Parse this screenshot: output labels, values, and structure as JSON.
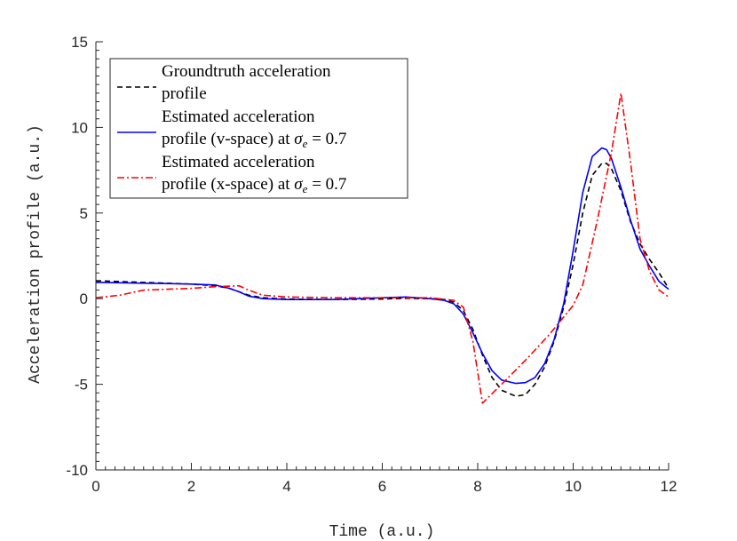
{
  "chart_data": {
    "type": "line",
    "xlabel": "Time (a.u.)",
    "ylabel": "Acceleration profile (a.u.)",
    "xlim": [
      0,
      12
    ],
    "ylim": [
      -10,
      15
    ],
    "xticks": [
      0,
      2,
      4,
      6,
      8,
      10,
      12
    ],
    "yticks": [
      -10,
      -5,
      0,
      5,
      10,
      15
    ],
    "xtick_labels": [
      "0",
      "2",
      "4",
      "6",
      "8",
      "10",
      "12"
    ],
    "ytick_labels": [
      "-10",
      "-5",
      "0",
      "5",
      "10",
      "15"
    ],
    "grid": false,
    "legend_position": "top-left",
    "series": [
      {
        "name": "Groundtruth acceleration profile",
        "legend_lines": [
          "Groundtruth acceleration",
          "profile"
        ],
        "color": "#000000",
        "style": "dashed",
        "points": [
          [
            0,
            1.05
          ],
          [
            0.5,
            1.0
          ],
          [
            1,
            0.95
          ],
          [
            1.5,
            0.9
          ],
          [
            2,
            0.85
          ],
          [
            2.5,
            0.75
          ],
          [
            2.8,
            0.6
          ],
          [
            3,
            0.4
          ],
          [
            3.2,
            0.2
          ],
          [
            3.5,
            0.05
          ],
          [
            4,
            -0.02
          ],
          [
            5,
            -0.05
          ],
          [
            6,
            -0.02
          ],
          [
            6.5,
            0.02
          ],
          [
            7,
            0.0
          ],
          [
            7.3,
            -0.05
          ],
          [
            7.5,
            -0.2
          ],
          [
            7.7,
            -0.7
          ],
          [
            7.9,
            -1.8
          ],
          [
            8.1,
            -3.3
          ],
          [
            8.3,
            -4.6
          ],
          [
            8.5,
            -5.35
          ],
          [
            8.8,
            -5.7
          ],
          [
            9.0,
            -5.6
          ],
          [
            9.2,
            -5.0
          ],
          [
            9.4,
            -4.0
          ],
          [
            9.6,
            -2.5
          ],
          [
            9.8,
            -0.5
          ],
          [
            10.0,
            2.0
          ],
          [
            10.2,
            5.0
          ],
          [
            10.4,
            7.2
          ],
          [
            10.6,
            7.9
          ],
          [
            10.7,
            7.9
          ],
          [
            10.8,
            7.6
          ],
          [
            11.0,
            6.3
          ],
          [
            11.2,
            4.5
          ],
          [
            11.4,
            3.2
          ],
          [
            11.6,
            2.3
          ],
          [
            11.8,
            1.5
          ],
          [
            12,
            0.6
          ]
        ]
      },
      {
        "name": "Estimated acceleration profile (v-space) at σe = 0.7",
        "legend_lines": [
          "Estimated acceleration",
          "profile (v-space) at "
        ],
        "legend_math": "σe = 0.7",
        "color": "#0000ff",
        "style": "solid",
        "points": [
          [
            0,
            0.95
          ],
          [
            0.5,
            0.93
          ],
          [
            1,
            0.9
          ],
          [
            1.5,
            0.88
          ],
          [
            2,
            0.85
          ],
          [
            2.5,
            0.8
          ],
          [
            2.8,
            0.6
          ],
          [
            3,
            0.4
          ],
          [
            3.2,
            0.15
          ],
          [
            3.5,
            0.0
          ],
          [
            4,
            -0.05
          ],
          [
            5,
            -0.05
          ],
          [
            6,
            0.05
          ],
          [
            6.5,
            0.1
          ],
          [
            7,
            0.0
          ],
          [
            7.3,
            -0.1
          ],
          [
            7.5,
            -0.3
          ],
          [
            7.7,
            -0.9
          ],
          [
            7.9,
            -2.0
          ],
          [
            8.1,
            -3.2
          ],
          [
            8.3,
            -4.2
          ],
          [
            8.5,
            -4.75
          ],
          [
            8.8,
            -4.95
          ],
          [
            9.0,
            -4.9
          ],
          [
            9.2,
            -4.6
          ],
          [
            9.4,
            -3.8
          ],
          [
            9.6,
            -2.4
          ],
          [
            9.8,
            -0.3
          ],
          [
            10.0,
            2.8
          ],
          [
            10.2,
            6.2
          ],
          [
            10.4,
            8.3
          ],
          [
            10.6,
            8.8
          ],
          [
            10.7,
            8.7
          ],
          [
            10.8,
            8.2
          ],
          [
            11.0,
            6.5
          ],
          [
            11.2,
            4.6
          ],
          [
            11.4,
            2.9
          ],
          [
            11.6,
            1.9
          ],
          [
            11.8,
            1.0
          ],
          [
            12,
            0.55
          ]
        ]
      },
      {
        "name": "Estimated acceleration profile (x-space) at σe = 0.7",
        "legend_lines": [
          "Estimated acceleration",
          "profile (x-space) at "
        ],
        "legend_math": "σe = 0.7",
        "color": "#ff0000",
        "style": "dashdot",
        "points": [
          [
            0,
            0.05
          ],
          [
            0.5,
            0.2
          ],
          [
            1,
            0.5
          ],
          [
            1.5,
            0.55
          ],
          [
            2,
            0.6
          ],
          [
            2.5,
            0.7
          ],
          [
            3,
            0.75
          ],
          [
            3.2,
            0.5
          ],
          [
            3.5,
            0.2
          ],
          [
            4,
            0.1
          ],
          [
            5,
            0.05
          ],
          [
            6,
            0.05
          ],
          [
            7,
            0.05
          ],
          [
            7.5,
            -0.1
          ],
          [
            7.7,
            -0.5
          ],
          [
            7.9,
            -2.5
          ],
          [
            8.1,
            -6.1
          ],
          [
            8.5,
            -5.0
          ],
          [
            9.0,
            -3.6
          ],
          [
            9.5,
            -2.1
          ],
          [
            10.0,
            -0.4
          ],
          [
            10.2,
            0.8
          ],
          [
            10.5,
            4.5
          ],
          [
            10.8,
            8.5
          ],
          [
            11.0,
            12.0
          ],
          [
            11.2,
            8.0
          ],
          [
            11.4,
            3.5
          ],
          [
            11.6,
            1.6
          ],
          [
            11.8,
            0.5
          ],
          [
            12,
            0.1
          ]
        ]
      }
    ]
  }
}
